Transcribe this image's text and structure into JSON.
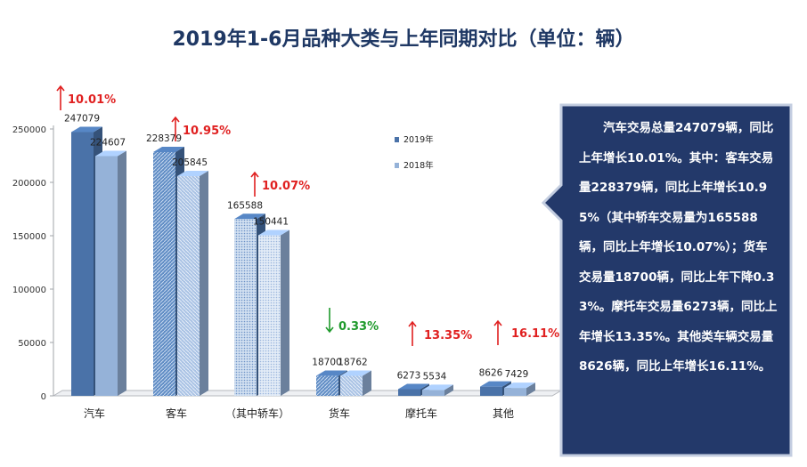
{
  "title": "2019年1-6月品种大类与上年同期对比（单位：辆）",
  "colors": {
    "title": "#1f3864",
    "series_2019": "#4a72a8",
    "series_2018": "#95b2d8",
    "callout_bg": "#23396a",
    "up_arrow": "#e02020",
    "down_arrow": "#1f9a2c"
  },
  "chart_data": {
    "type": "bar",
    "categories": [
      "汽车",
      "客车",
      "（其中轿车）",
      "货车",
      "摩托车",
      "其他"
    ],
    "series": [
      {
        "name": "2019年",
        "values": [
          247079,
          228379,
          165588,
          18700,
          6273,
          8626
        ]
      },
      {
        "name": "2018年",
        "values": [
          224607,
          205845,
          150441,
          18762,
          5534,
          7429
        ]
      }
    ],
    "changes": [
      {
        "direction": "up",
        "label": "10.01%"
      },
      {
        "direction": "up",
        "label": "10.95%"
      },
      {
        "direction": "up",
        "label": "10.07%"
      },
      {
        "direction": "down",
        "label": "0.33%"
      },
      {
        "direction": "up",
        "label": "13.35%"
      },
      {
        "direction": "up",
        "label": "16.11%"
      }
    ],
    "ylim": [
      0,
      250000
    ],
    "yticks": [
      0,
      50000,
      100000,
      150000,
      200000,
      250000
    ],
    "legend_position": "right",
    "grid": false
  },
  "summary": "汽车交易总量247079辆，同比上年增长10.01%。其中：客车交易量228379辆，同比上年增长10.95%（其中轿车交易量为165588辆，同比上年增长10.07%）；货车交易量18700辆，同比上年下降0.33%。摩托车交易量6273辆，同比上年增长13.35%。其他类车辆交易量8626辆，同比上年增长16.11%。"
}
